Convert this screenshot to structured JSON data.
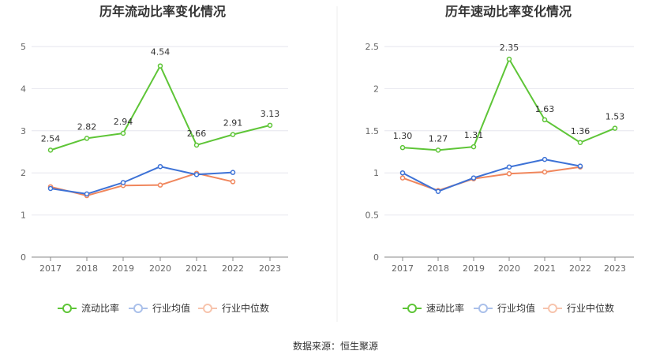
{
  "source": "数据来源：恒生聚源",
  "colors": {
    "company": "#5ec537",
    "industry_avg": "#3d72d6",
    "industry_median": "#f0865c",
    "grid": "#e6e6ee",
    "axis": "#8a8a8a"
  },
  "chart_data": [
    {
      "type": "line",
      "title": "历年流动比率变化情况",
      "categories": [
        "2017",
        "2018",
        "2019",
        "2020",
        "2021",
        "2022",
        "2023"
      ],
      "y_ticks": [
        "0",
        "1",
        "2",
        "3",
        "4",
        "5"
      ],
      "ylim": [
        0,
        5
      ],
      "grid": true,
      "legend_position": "bottom",
      "series": [
        {
          "name": "流动比率",
          "values": [
            2.54,
            2.82,
            2.94,
            4.54,
            2.66,
            2.91,
            3.13
          ],
          "labels": [
            "2.54",
            "2.82",
            "2.94",
            "4.54",
            "2.66",
            "2.91",
            "3.13"
          ]
        },
        {
          "name": "行业均值",
          "values": [
            1.63,
            1.5,
            1.77,
            2.15,
            1.96,
            2.01,
            null
          ]
        },
        {
          "name": "行业中位数",
          "values": [
            1.67,
            1.46,
            1.7,
            1.71,
            1.99,
            1.79,
            null
          ]
        }
      ]
    },
    {
      "type": "line",
      "title": "历年速动比率变化情况",
      "categories": [
        "2017",
        "2018",
        "2019",
        "2020",
        "2021",
        "2022",
        "2023"
      ],
      "y_ticks": [
        "0",
        "0.5",
        "1",
        "1.5",
        "2",
        "2.5"
      ],
      "ylim": [
        0,
        2.5
      ],
      "grid": true,
      "legend_position": "bottom",
      "series": [
        {
          "name": "速动比率",
          "values": [
            1.3,
            1.27,
            1.31,
            2.35,
            1.63,
            1.36,
            1.53
          ],
          "labels": [
            "1.30",
            "1.27",
            "1.31",
            "2.35",
            "1.63",
            "1.36",
            "1.53"
          ]
        },
        {
          "name": "行业均值",
          "values": [
            1.0,
            0.78,
            0.94,
            1.07,
            1.16,
            1.08,
            null
          ]
        },
        {
          "name": "行业中位数",
          "values": [
            0.94,
            0.79,
            0.93,
            0.99,
            1.01,
            1.07,
            null
          ]
        }
      ]
    }
  ]
}
